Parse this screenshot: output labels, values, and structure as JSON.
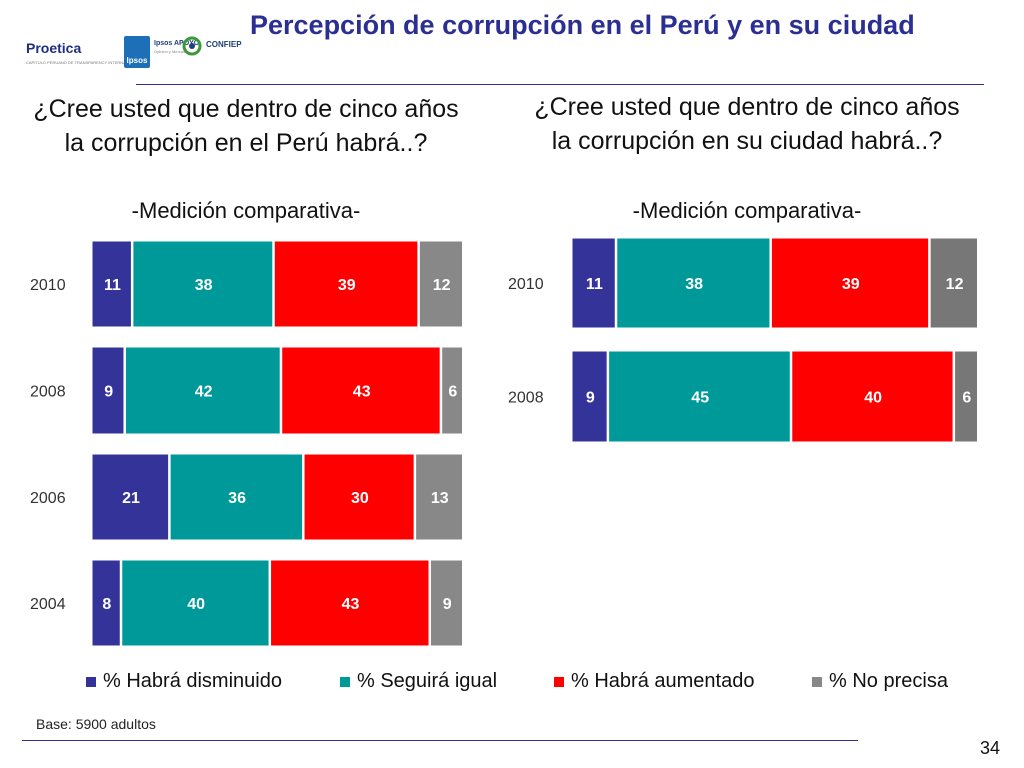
{
  "logos": {
    "proetica": "Proetica",
    "proetica_sub": "CAPITULO PERUANO DE TRANSPARENCY INTERNATIONAL",
    "ipsos": "Ipsos",
    "apoyo": "Ipsos APOYO",
    "apoyo_sub": "Opinión y Mercado",
    "confiep": "CONFIEP"
  },
  "title": "Percepción de corrupción en el Perú y en su ciudad",
  "left_panel": {
    "question": "¿Cree usted que dentro de cinco años la corrupción en el Perú habrá..?",
    "subtitle": "-Medición comparativa-"
  },
  "right_panel": {
    "question": "¿Cree usted que dentro de cinco años la corrupción en su ciudad habrá..?",
    "subtitle": "-Medición comparativa-"
  },
  "chart_data": [
    {
      "type": "bar",
      "orientation": "horizontal",
      "stacked": true,
      "title": "¿Cree usted que dentro de cinco años la corrupción en el Perú habrá..?",
      "categories": [
        "2010",
        "2008",
        "2006",
        "2004"
      ],
      "series": [
        {
          "name": "% Habrá disminuido",
          "color": "#333399",
          "values": [
            11,
            9,
            21,
            8
          ]
        },
        {
          "name": "% Seguirá igual",
          "color": "#009999",
          "values": [
            38,
            42,
            36,
            40
          ]
        },
        {
          "name": "% Habrá aumentado",
          "color": "#ff0000",
          "values": [
            39,
            43,
            30,
            43
          ]
        },
        {
          "name": "% No precisa",
          "color": "#888888",
          "values": [
            12,
            6,
            13,
            9
          ]
        }
      ]
    },
    {
      "type": "bar",
      "orientation": "horizontal",
      "stacked": true,
      "title": "¿Cree usted que dentro de cinco años la corrupción en su ciudad habrá..?",
      "categories": [
        "2010",
        "2008"
      ],
      "series": [
        {
          "name": "% Habrá disminuido",
          "color": "#333399",
          "values": [
            11,
            9
          ]
        },
        {
          "name": "% Seguirá igual",
          "color": "#009999",
          "values": [
            38,
            45
          ]
        },
        {
          "name": "% Habrá aumentado",
          "color": "#ff0000",
          "values": [
            39,
            40
          ]
        },
        {
          "name": "% No precisa",
          "color": "#777777",
          "values": [
            12,
            6
          ]
        }
      ]
    }
  ],
  "legend": [
    "% Habrá disminuido",
    "% Seguirá igual",
    "% Habrá aumentado",
    "% No precisa"
  ],
  "footer": {
    "base": "Base: 5900 adultos",
    "page_number": "34"
  }
}
